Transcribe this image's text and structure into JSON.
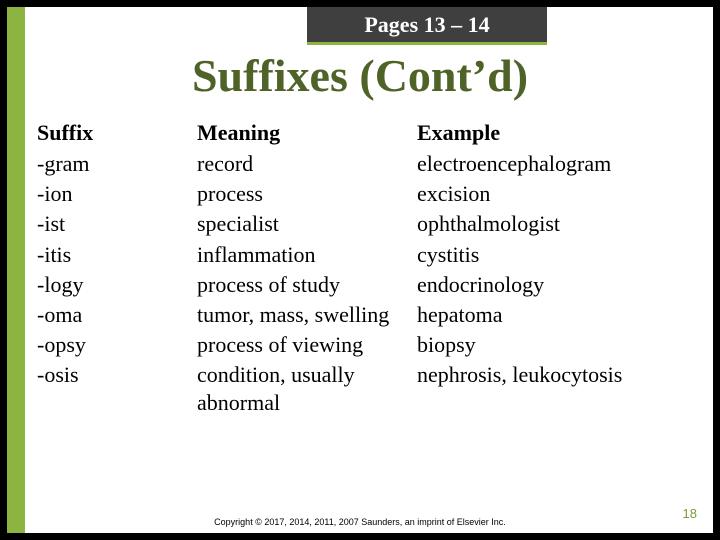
{
  "page_tab": "Pages 13 – 14",
  "title": "Suffixes (Cont’d)",
  "headers": {
    "c1": "Suffix",
    "c2": "Meaning",
    "c3": "Example"
  },
  "rows": [
    {
      "suffix": "-gram",
      "meaning": "record",
      "example": "electroencephalogram"
    },
    {
      "suffix": "-ion",
      "meaning": "process",
      "example": "excision"
    },
    {
      "suffix": "-ist",
      "meaning": "specialist",
      "example": "ophthalmologist"
    },
    {
      "suffix": "-itis",
      "meaning": "inflammation",
      "example": "cystitis"
    },
    {
      "suffix": "-logy",
      "meaning": "process of study",
      "example": "endocrinology"
    },
    {
      "suffix": "-oma",
      "meaning": "tumor, mass, swelling",
      "example": "hepatoma"
    },
    {
      "suffix": "-opsy",
      "meaning": "process of viewing",
      "example": "biopsy"
    },
    {
      "suffix": "-osis",
      "meaning": "condition, usually abnormal",
      "example": "nephrosis, leukocytosis"
    }
  ],
  "copyright": "Copyright © 2017, 2014, 2011, 2007 Saunders, an imprint of Elsevier Inc.",
  "page_number": "18",
  "colors": {
    "accent": "#8bb440",
    "title": "#4f6328",
    "tab_bg": "#3f3f3f",
    "pagenum": "#7c9b3e"
  }
}
